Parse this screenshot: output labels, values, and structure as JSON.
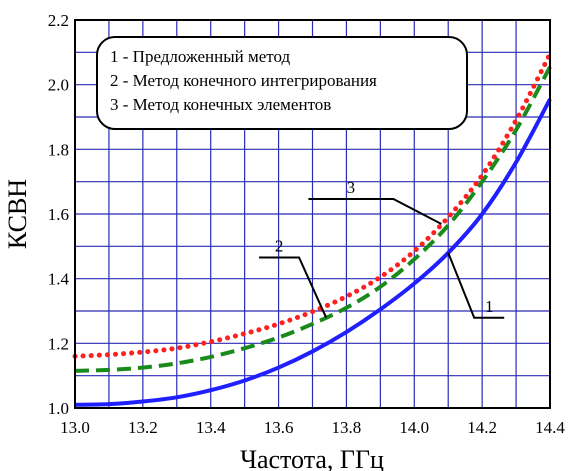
{
  "chart_data": {
    "type": "line",
    "xlabel": "Частота, ГГц",
    "ylabel": "КСВН",
    "xlim": [
      13.0,
      14.4
    ],
    "ylim": [
      1.0,
      2.2
    ],
    "x_ticks": [
      "13.0",
      "13.2",
      "13.4",
      "13.6",
      "13.8",
      "14.0",
      "14.2",
      "14.4"
    ],
    "y_ticks": [
      "1.0",
      "1.2",
      "1.4",
      "1.6",
      "1.8",
      "2.0",
      "2.2"
    ],
    "grid": true,
    "legend": {
      "placement": "top-left",
      "entries": [
        "1 - Предложенный метод",
        "2 - Метод конечного интегрирования",
        "3 - Метод конечных элементов"
      ]
    },
    "series": [
      {
        "label": "1",
        "color": "#1f1fff",
        "style": "solid",
        "x": [
          13.0,
          13.1,
          13.2,
          13.3,
          13.4,
          13.5,
          13.6,
          13.7,
          13.8,
          13.9,
          14.0,
          14.1,
          14.2,
          14.3,
          14.4
        ],
        "y": [
          1.01,
          1.012,
          1.02,
          1.033,
          1.055,
          1.085,
          1.125,
          1.175,
          1.235,
          1.305,
          1.385,
          1.48,
          1.6,
          1.76,
          1.955
        ]
      },
      {
        "label": "2",
        "color": "#1a8a1a",
        "style": "dashed",
        "x": [
          13.0,
          13.1,
          13.2,
          13.3,
          13.4,
          13.5,
          13.6,
          13.7,
          13.8,
          13.9,
          14.0,
          14.1,
          14.2,
          14.3,
          14.4
        ],
        "y": [
          1.115,
          1.118,
          1.125,
          1.138,
          1.158,
          1.185,
          1.218,
          1.26,
          1.31,
          1.375,
          1.46,
          1.565,
          1.7,
          1.86,
          2.055
        ]
      },
      {
        "label": "3",
        "color": "#ff2020",
        "style": "dotted",
        "x": [
          13.0,
          13.1,
          13.2,
          13.3,
          13.4,
          13.5,
          13.6,
          13.7,
          13.8,
          13.9,
          14.0,
          14.1,
          14.2,
          14.3,
          14.4
        ],
        "y": [
          1.16,
          1.165,
          1.173,
          1.185,
          1.205,
          1.23,
          1.26,
          1.298,
          1.345,
          1.405,
          1.485,
          1.59,
          1.72,
          1.89,
          2.095
        ]
      }
    ],
    "annotations": [
      {
        "text": "1",
        "series": 0,
        "at_x": 14.1
      },
      {
        "text": "2",
        "series": 1,
        "at_x": 13.74
      },
      {
        "text": "3",
        "series": 2,
        "at_x": 14.08
      }
    ]
  }
}
